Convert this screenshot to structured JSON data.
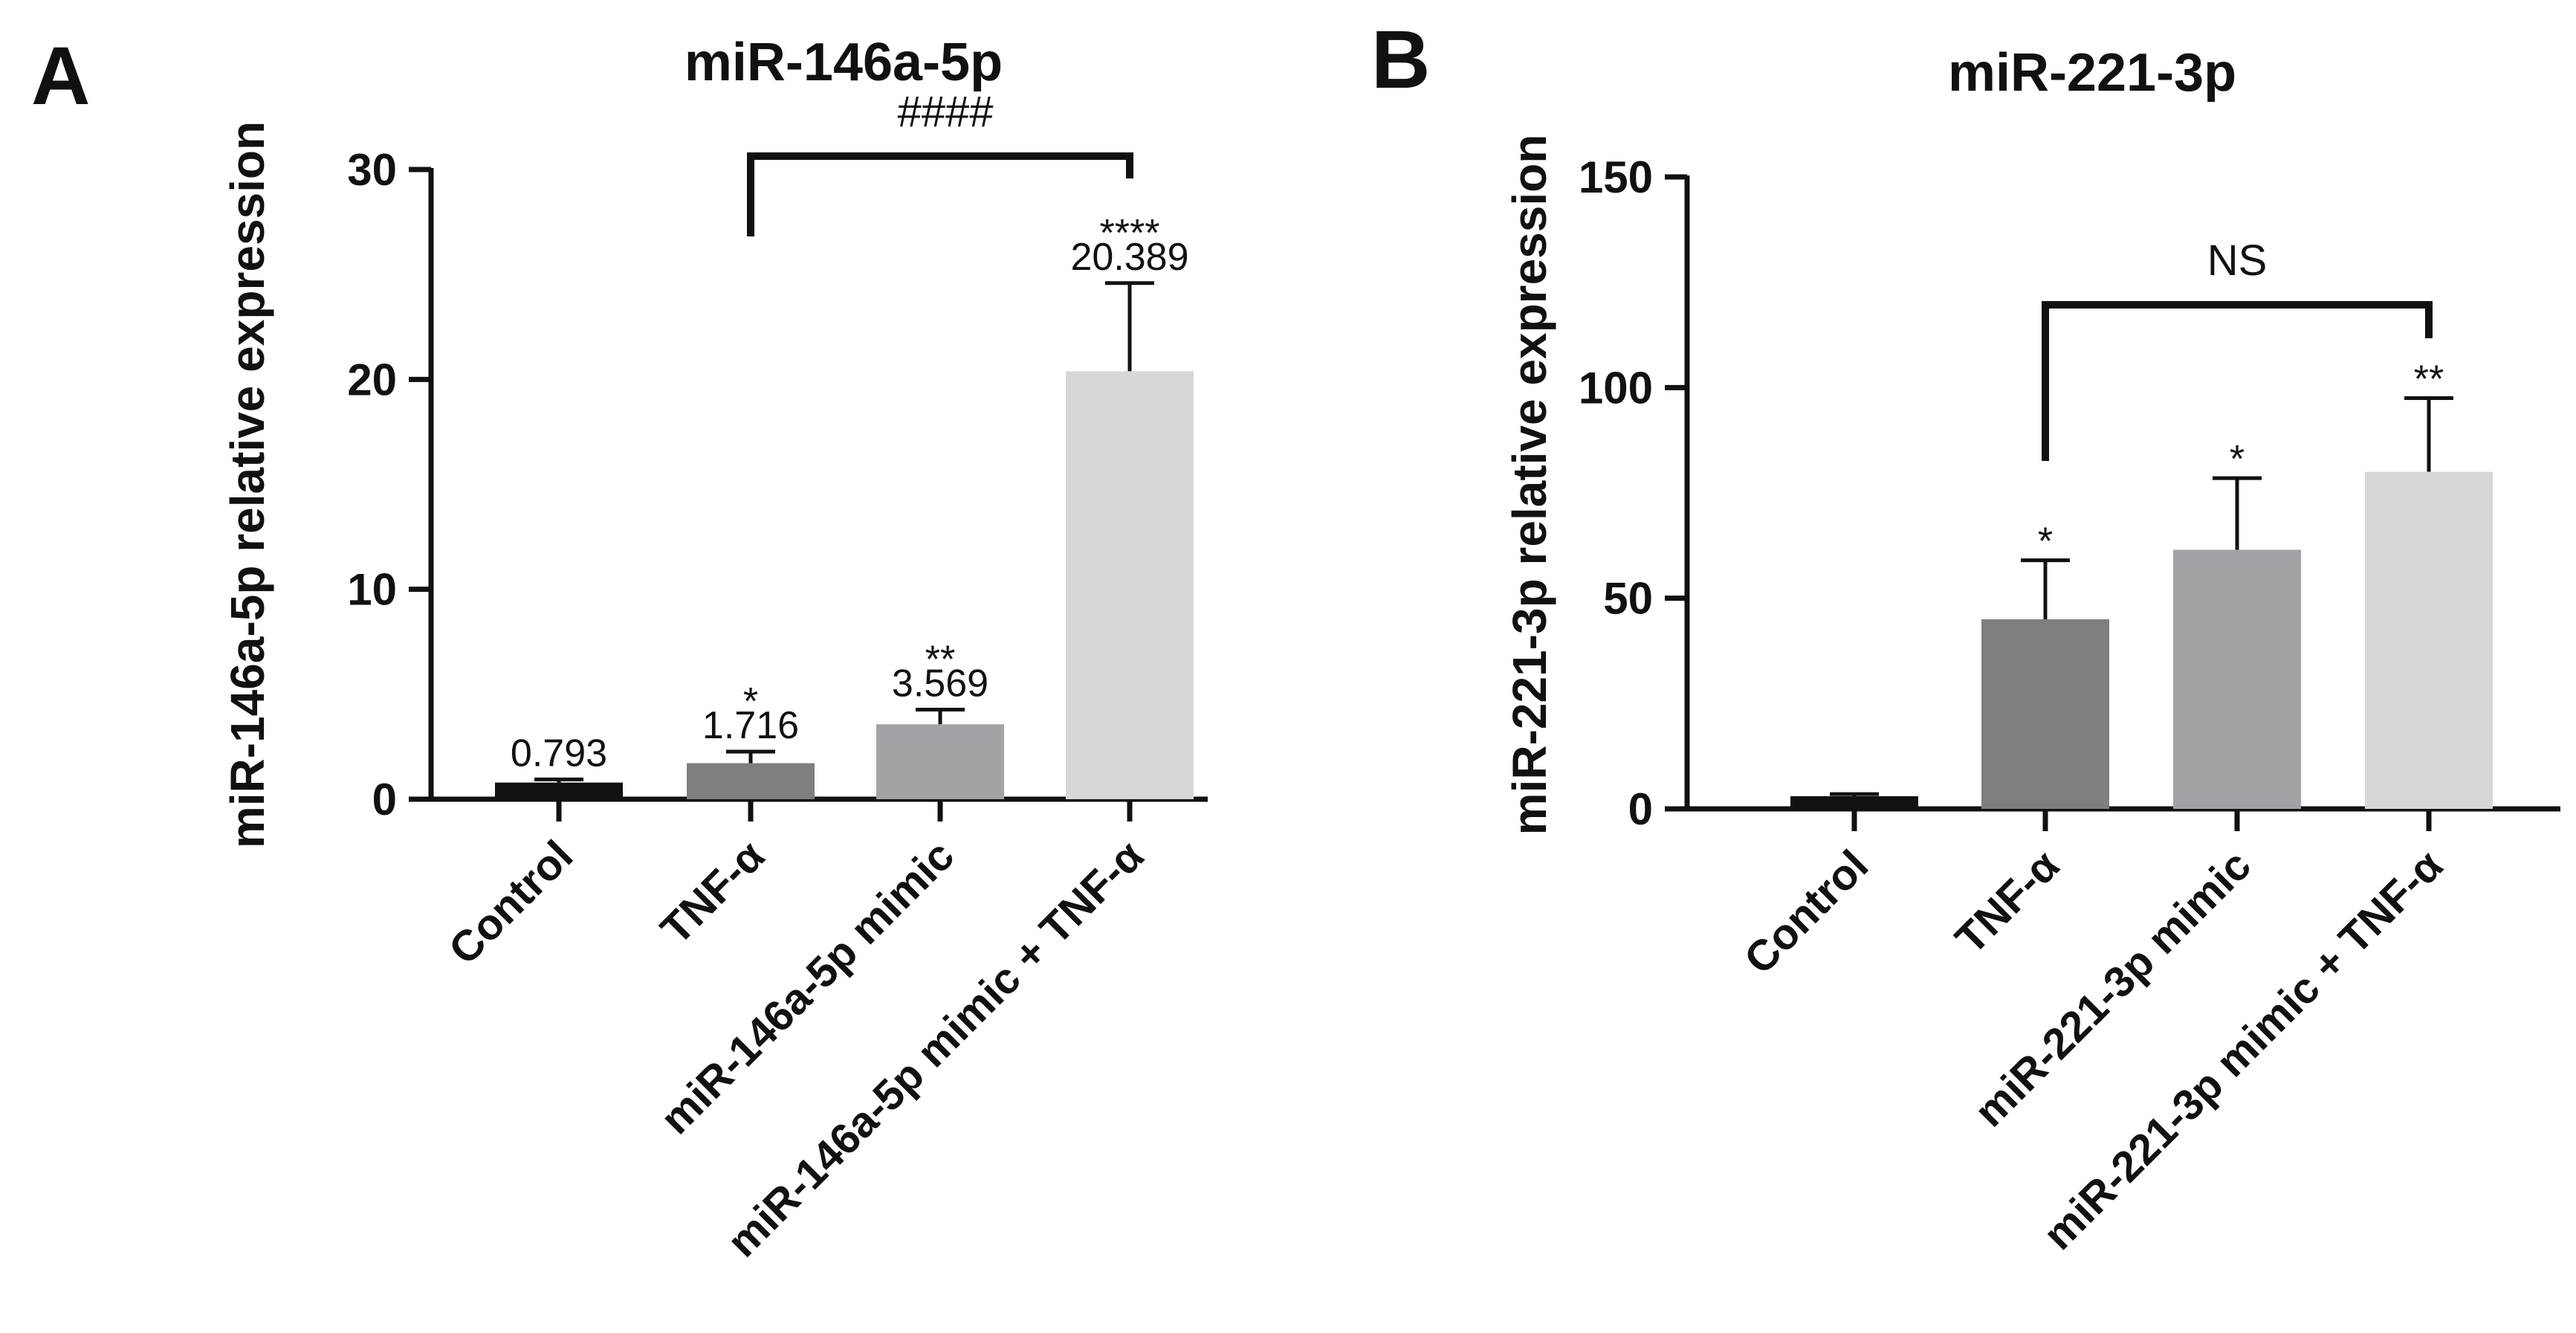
{
  "chart_data": [
    {
      "type": "bar",
      "panel": "A",
      "title": "miR-146a-5p",
      "ylabel": "miR-146a-5p relative expression",
      "xlabel": "",
      "ylim": [
        0,
        30
      ],
      "yticks": [
        0,
        10,
        20,
        30
      ],
      "categories": [
        "Control",
        "TNF-α",
        "miR-146a-5p mimic",
        "miR-146a-5p mimic + TNF-α"
      ],
      "values": [
        0.793,
        1.716,
        3.569,
        20.389
      ],
      "errors": [
        0.15,
        0.55,
        0.7,
        4.2
      ],
      "value_labels": [
        "0.793",
        "1.716",
        "3.569",
        "20.389"
      ],
      "significance": [
        "",
        "*",
        "**",
        "****"
      ],
      "colors": [
        "#111111",
        "#7f7f7f",
        "#a3a3a7",
        "#d7d7d7"
      ],
      "comparison": {
        "from": 1,
        "to": 3,
        "label": "####"
      },
      "grid": false
    },
    {
      "type": "bar",
      "panel": "B",
      "title": "miR-221-3p",
      "ylabel": "miR-221-3p relative expression",
      "xlabel": "",
      "ylim": [
        0,
        150
      ],
      "yticks": [
        0,
        50,
        100,
        150
      ],
      "categories": [
        "Control",
        "TNF-α",
        "miR-221-3p mimic",
        "miR-221-3p mimic + TNF-α"
      ],
      "values": [
        3,
        45,
        61.5,
        80
      ],
      "errors": [
        0.5,
        14,
        17,
        17.5
      ],
      "value_labels": [],
      "significance": [
        "",
        "*",
        "*",
        "**"
      ],
      "colors": [
        "#111111",
        "#7f7f7f",
        "#a3a3a7",
        "#d7d7d7"
      ],
      "comparison": {
        "from": 1,
        "to": 3,
        "label": "NS"
      },
      "grid": false
    }
  ]
}
